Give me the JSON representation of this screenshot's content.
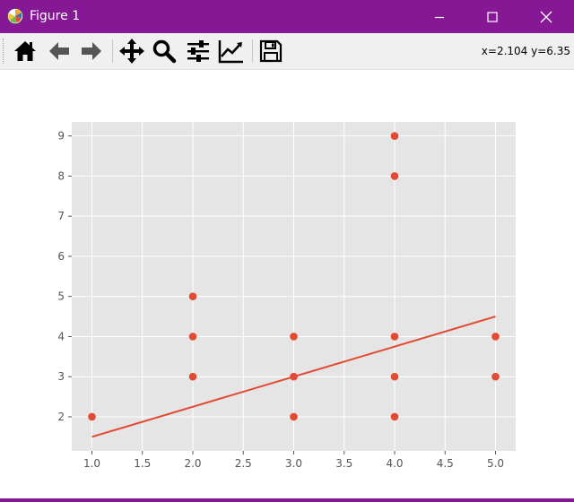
{
  "window": {
    "title": "Figure 1",
    "accent_color": "#861896",
    "controls": [
      "minimize-icon",
      "maximize-icon",
      "close-icon"
    ]
  },
  "toolbar": {
    "tools": [
      "home-icon",
      "back-arrow-icon",
      "forward-arrow-icon",
      "pan-move-icon",
      "zoom-magnifier-icon",
      "configure-subplots-icon",
      "edit-axis-icon",
      "save-floppy-icon"
    ],
    "coords_text": "x=2.104 y=6.35"
  },
  "chart_data": {
    "type": "scatter",
    "style": "ggplot",
    "grid": true,
    "xlim": [
      0.8,
      5.2
    ],
    "ylim": [
      1.15,
      9.35
    ],
    "x_ticks": [
      1.0,
      1.5,
      2.0,
      2.5,
      3.0,
      3.5,
      4.0,
      4.5,
      5.0
    ],
    "x_tick_labels": [
      "1.0",
      "1.5",
      "2.0",
      "2.5",
      "3.0",
      "3.5",
      "4.0",
      "4.5",
      "5.0"
    ],
    "y_ticks": [
      2,
      3,
      4,
      5,
      6,
      7,
      8,
      9
    ],
    "y_tick_labels": [
      "2",
      "3",
      "4",
      "5",
      "6",
      "7",
      "8",
      "9"
    ],
    "points": [
      [
        1,
        2
      ],
      [
        2,
        3
      ],
      [
        2,
        4
      ],
      [
        2,
        5
      ],
      [
        3,
        2
      ],
      [
        3,
        3
      ],
      [
        3,
        4
      ],
      [
        4,
        2
      ],
      [
        4,
        3
      ],
      [
        4,
        4
      ],
      [
        4,
        8
      ],
      [
        4,
        9
      ],
      [
        5,
        3
      ],
      [
        5,
        4
      ]
    ],
    "fit_line": {
      "x": [
        1,
        5
      ],
      "y": [
        1.5,
        4.5
      ]
    },
    "marker_color": "#E24A33",
    "line_color": "#E24A33",
    "axes_bg": "#E5E5E5",
    "grid_color": "#FFFFFF"
  }
}
